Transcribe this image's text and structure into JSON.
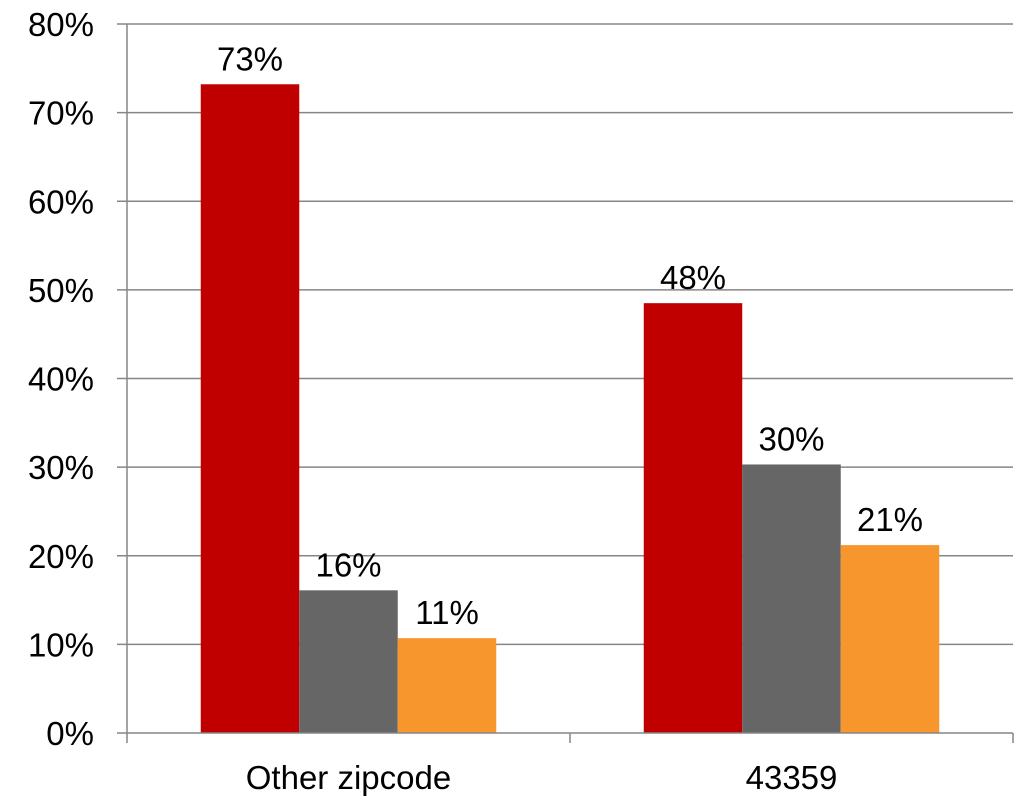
{
  "chart_data": {
    "type": "bar",
    "categories": [
      "Other zipcode",
      "43359"
    ],
    "series": [
      {
        "values": [
          73.2,
          48.5
        ],
        "labels": [
          "73%",
          "48%"
        ],
        "color": "#c00000"
      },
      {
        "values": [
          16.1,
          30.3
        ],
        "labels": [
          "16%",
          "30%"
        ],
        "color": "#666666"
      },
      {
        "values": [
          10.7,
          21.2
        ],
        "labels": [
          "11%",
          "21%"
        ],
        "color": "#f7962d"
      }
    ],
    "ylim": [
      0,
      80
    ],
    "yticks": [
      0,
      10,
      20,
      30,
      40,
      50,
      60,
      70,
      80
    ],
    "ytick_labels": [
      "0%",
      "10%",
      "20%",
      "30%",
      "40%",
      "50%",
      "60%",
      "70%",
      "80%"
    ],
    "grid": true,
    "grid_color": "#868686",
    "title": "",
    "xlabel": "",
    "ylabel": ""
  }
}
